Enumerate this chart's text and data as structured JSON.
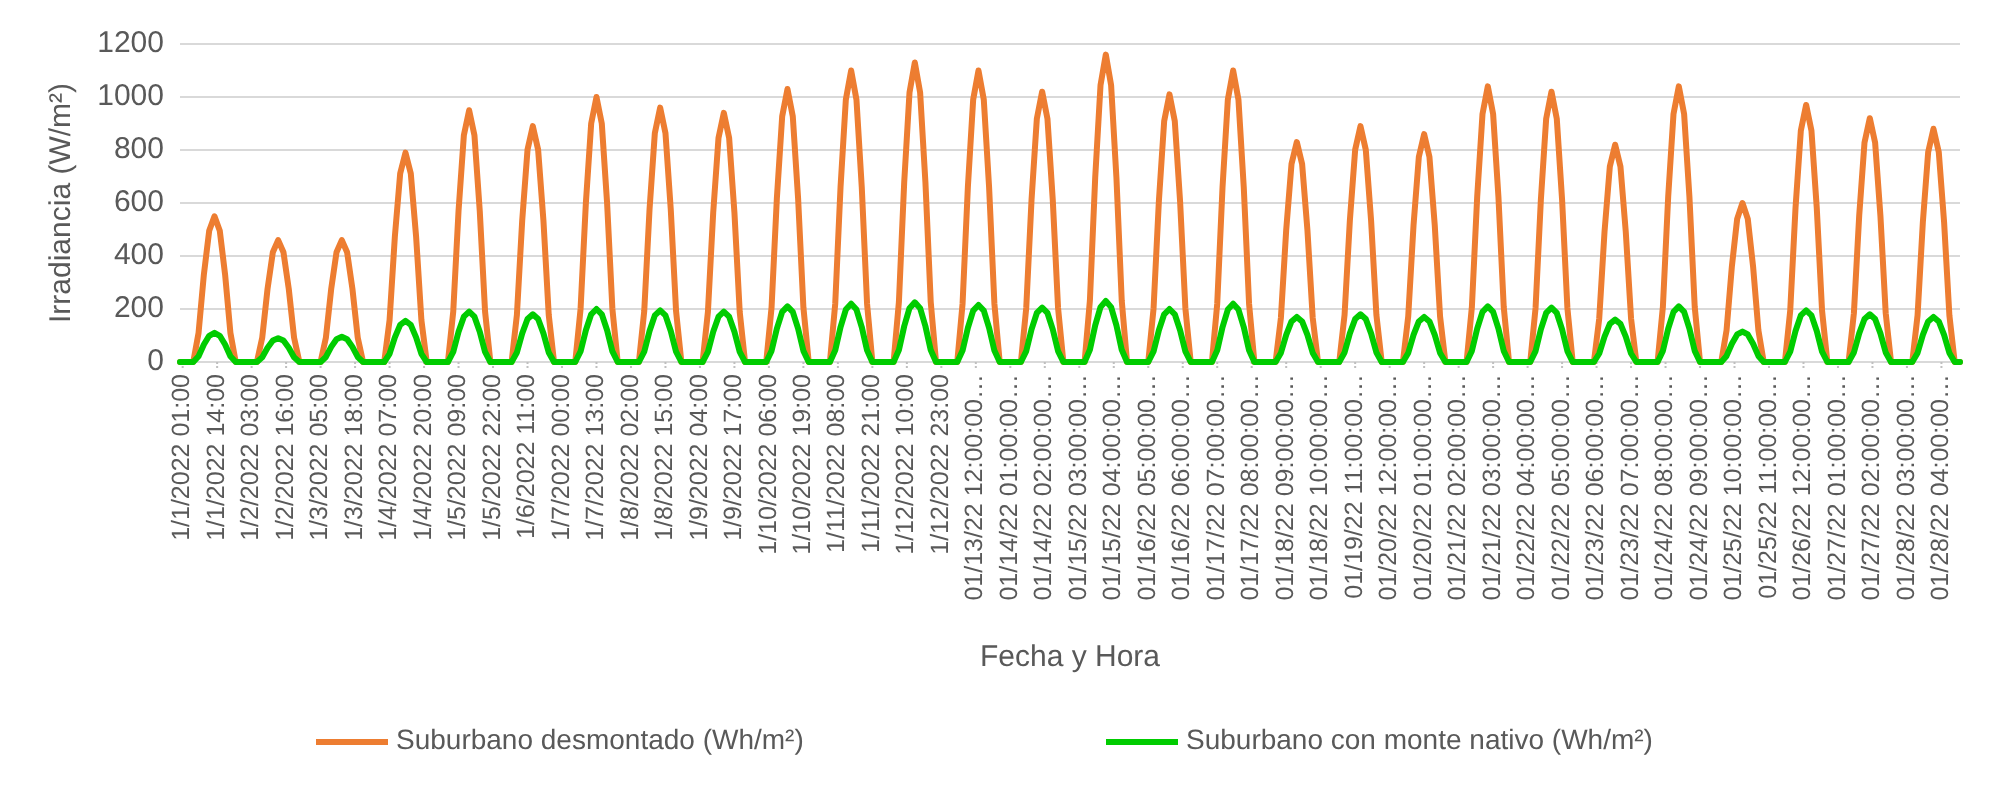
{
  "chart_data": {
    "type": "line",
    "xlabel": "Fecha y Hora",
    "ylabel": "Irradiancia (W/m²)",
    "x": [
      "2022-01-01T00:00",
      "2022-01-01T05:00",
      "2022-01-01T07:00",
      "2022-01-01T09:00",
      "2022-01-01T11:00",
      "2022-01-01T13:00",
      "2022-01-01T15:00",
      "2022-01-01T17:00",
      "2022-01-01T19:00",
      "2022-01-01T21:00",
      "2022-01-02T05:00",
      "2022-01-02T07:00",
      "2022-01-02T09:00",
      "2022-01-02T11:00",
      "2022-01-02T13:00",
      "2022-01-02T15:00",
      "2022-01-02T17:00",
      "2022-01-02T19:00",
      "2022-01-02T21:00",
      "2022-01-03T05:00",
      "2022-01-03T07:00",
      "2022-01-03T09:00",
      "2022-01-03T11:00",
      "2022-01-03T13:00",
      "2022-01-03T15:00",
      "2022-01-03T17:00",
      "2022-01-03T19:00",
      "2022-01-03T21:00",
      "2022-01-04T05:00",
      "2022-01-04T07:00",
      "2022-01-04T09:00",
      "2022-01-04T11:00",
      "2022-01-04T13:00",
      "2022-01-04T15:00",
      "2022-01-04T17:00",
      "2022-01-04T19:00",
      "2022-01-04T21:00",
      "2022-01-05T05:00",
      "2022-01-05T07:00",
      "2022-01-05T09:00",
      "2022-01-05T11:00",
      "2022-01-05T13:00",
      "2022-01-05T15:00",
      "2022-01-05T17:00",
      "2022-01-05T19:00",
      "2022-01-05T21:00",
      "2022-01-06T05:00",
      "2022-01-06T07:00",
      "2022-01-06T09:00",
      "2022-01-06T11:00",
      "2022-01-06T13:00",
      "2022-01-06T15:00",
      "2022-01-06T17:00",
      "2022-01-06T19:00",
      "2022-01-06T21:00",
      "2022-01-07T05:00",
      "2022-01-07T07:00",
      "2022-01-07T09:00",
      "2022-01-07T11:00",
      "2022-01-07T13:00",
      "2022-01-07T15:00",
      "2022-01-07T17:00",
      "2022-01-07T19:00",
      "2022-01-07T21:00",
      "2022-01-08T05:00",
      "2022-01-08T07:00",
      "2022-01-08T09:00",
      "2022-01-08T11:00",
      "2022-01-08T13:00",
      "2022-01-08T15:00",
      "2022-01-08T17:00",
      "2022-01-08T19:00",
      "2022-01-08T21:00",
      "2022-01-09T05:00",
      "2022-01-09T07:00",
      "2022-01-09T09:00",
      "2022-01-09T11:00",
      "2022-01-09T13:00",
      "2022-01-09T15:00",
      "2022-01-09T17:00",
      "2022-01-09T19:00",
      "2022-01-09T21:00",
      "2022-01-10T05:00",
      "2022-01-10T07:00",
      "2022-01-10T09:00",
      "2022-01-10T11:00",
      "2022-01-10T13:00",
      "2022-01-10T15:00",
      "2022-01-10T17:00",
      "2022-01-10T19:00",
      "2022-01-10T21:00",
      "2022-01-11T05:00",
      "2022-01-11T07:00",
      "2022-01-11T09:00",
      "2022-01-11T11:00",
      "2022-01-11T13:00",
      "2022-01-11T15:00",
      "2022-01-11T17:00",
      "2022-01-11T19:00",
      "2022-01-11T21:00",
      "2022-01-12T05:00",
      "2022-01-12T07:00",
      "2022-01-12T09:00",
      "2022-01-12T11:00",
      "2022-01-12T13:00",
      "2022-01-12T15:00",
      "2022-01-12T17:00",
      "2022-01-12T19:00",
      "2022-01-12T21:00",
      "2022-01-13T05:00",
      "2022-01-13T07:00",
      "2022-01-13T09:00",
      "2022-01-13T11:00",
      "2022-01-13T13:00",
      "2022-01-13T15:00",
      "2022-01-13T17:00",
      "2022-01-13T19:00",
      "2022-01-13T21:00",
      "2022-01-14T05:00",
      "2022-01-14T07:00",
      "2022-01-14T09:00",
      "2022-01-14T11:00",
      "2022-01-14T13:00",
      "2022-01-14T15:00",
      "2022-01-14T17:00",
      "2022-01-14T19:00",
      "2022-01-14T21:00",
      "2022-01-15T05:00",
      "2022-01-15T07:00",
      "2022-01-15T09:00",
      "2022-01-15T11:00",
      "2022-01-15T13:00",
      "2022-01-15T15:00",
      "2022-01-15T17:00",
      "2022-01-15T19:00",
      "2022-01-15T21:00",
      "2022-01-16T05:00",
      "2022-01-16T07:00",
      "2022-01-16T09:00",
      "2022-01-16T11:00",
      "2022-01-16T13:00",
      "2022-01-16T15:00",
      "2022-01-16T17:00",
      "2022-01-16T19:00",
      "2022-01-16T21:00",
      "2022-01-17T05:00",
      "2022-01-17T07:00",
      "2022-01-17T09:00",
      "2022-01-17T11:00",
      "2022-01-17T13:00",
      "2022-01-17T15:00",
      "2022-01-17T17:00",
      "2022-01-17T19:00",
      "2022-01-17T21:00",
      "2022-01-18T05:00",
      "2022-01-18T07:00",
      "2022-01-18T09:00",
      "2022-01-18T11:00",
      "2022-01-18T13:00",
      "2022-01-18T15:00",
      "2022-01-18T17:00",
      "2022-01-18T19:00",
      "2022-01-18T21:00",
      "2022-01-19T05:00",
      "2022-01-19T07:00",
      "2022-01-19T09:00",
      "2022-01-19T11:00",
      "2022-01-19T13:00",
      "2022-01-19T15:00",
      "2022-01-19T17:00",
      "2022-01-19T19:00",
      "2022-01-19T21:00",
      "2022-01-20T05:00",
      "2022-01-20T07:00",
      "2022-01-20T09:00",
      "2022-01-20T11:00",
      "2022-01-20T13:00",
      "2022-01-20T15:00",
      "2022-01-20T17:00",
      "2022-01-20T19:00",
      "2022-01-20T21:00",
      "2022-01-21T05:00",
      "2022-01-21T07:00",
      "2022-01-21T09:00",
      "2022-01-21T11:00",
      "2022-01-21T13:00",
      "2022-01-21T15:00",
      "2022-01-21T17:00",
      "2022-01-21T19:00",
      "2022-01-21T21:00",
      "2022-01-22T05:00",
      "2022-01-22T07:00",
      "2022-01-22T09:00",
      "2022-01-22T11:00",
      "2022-01-22T13:00",
      "2022-01-22T15:00",
      "2022-01-22T17:00",
      "2022-01-22T19:00",
      "2022-01-22T21:00",
      "2022-01-23T05:00",
      "2022-01-23T07:00",
      "2022-01-23T09:00",
      "2022-01-23T11:00",
      "2022-01-23T13:00",
      "2022-01-23T15:00",
      "2022-01-23T17:00",
      "2022-01-23T19:00",
      "2022-01-23T21:00",
      "2022-01-24T05:00",
      "2022-01-24T07:00",
      "2022-01-24T09:00",
      "2022-01-24T11:00",
      "2022-01-24T13:00",
      "2022-01-24T15:00",
      "2022-01-24T17:00",
      "2022-01-24T19:00",
      "2022-01-24T21:00",
      "2022-01-25T05:00",
      "2022-01-25T07:00",
      "2022-01-25T09:00",
      "2022-01-25T11:00",
      "2022-01-25T13:00",
      "2022-01-25T15:00",
      "2022-01-25T17:00",
      "2022-01-25T19:00",
      "2022-01-25T21:00",
      "2022-01-26T05:00",
      "2022-01-26T07:00",
      "2022-01-26T09:00",
      "2022-01-26T11:00",
      "2022-01-26T13:00",
      "2022-01-26T15:00",
      "2022-01-26T17:00",
      "2022-01-26T19:00",
      "2022-01-26T21:00",
      "2022-01-27T05:00",
      "2022-01-27T07:00",
      "2022-01-27T09:00",
      "2022-01-27T11:00",
      "2022-01-27T13:00",
      "2022-01-27T15:00",
      "2022-01-27T17:00",
      "2022-01-27T19:00",
      "2022-01-27T21:00",
      "2022-01-28T05:00",
      "2022-01-28T07:00",
      "2022-01-28T09:00",
      "2022-01-28T11:00",
      "2022-01-28T13:00",
      "2022-01-28T15:00",
      "2022-01-28T17:00",
      "2022-01-28T19:00",
      "2022-01-28T21:00",
      "2022-01-28T23:00"
    ],
    "series": [
      {
        "name": "Suburbano desmontado (Wh/m²)",
        "color": "#ed7d31",
        "values": [
          0,
          0,
          110,
          330,
          495,
          550,
          495,
          330,
          110,
          0,
          0,
          92,
          276,
          414,
          460,
          414,
          276,
          92,
          0,
          0,
          92,
          276,
          414,
          460,
          414,
          276,
          92,
          0,
          0,
          158,
          474,
          711,
          790,
          711,
          474,
          158,
          0,
          0,
          190,
          570,
          855,
          950,
          855,
          570,
          190,
          0,
          0,
          178,
          534,
          801,
          890,
          801,
          534,
          178,
          0,
          0,
          200,
          600,
          900,
          1000,
          900,
          600,
          200,
          0,
          0,
          192,
          576,
          864,
          960,
          864,
          576,
          192,
          0,
          0,
          188,
          564,
          846,
          940,
          846,
          564,
          188,
          0,
          0,
          206,
          618,
          927,
          1030,
          927,
          618,
          206,
          0,
          0,
          220,
          660,
          990,
          1100,
          990,
          660,
          220,
          0,
          0,
          226,
          678,
          1017,
          1130,
          1017,
          678,
          226,
          0,
          0,
          220,
          660,
          990,
          1100,
          990,
          660,
          220,
          0,
          0,
          204,
          612,
          918,
          1020,
          918,
          612,
          204,
          0,
          0,
          232,
          696,
          1044,
          1160,
          1044,
          696,
          232,
          0,
          0,
          202,
          606,
          909,
          1010,
          909,
          606,
          202,
          0,
          0,
          220,
          660,
          990,
          1100,
          990,
          660,
          220,
          0,
          0,
          166,
          498,
          747,
          830,
          747,
          498,
          166,
          0,
          0,
          178,
          534,
          801,
          890,
          801,
          534,
          178,
          0,
          0,
          172,
          516,
          774,
          860,
          774,
          516,
          172,
          0,
          0,
          208,
          624,
          936,
          1040,
          936,
          624,
          208,
          0,
          0,
          204,
          612,
          918,
          1020,
          918,
          612,
          204,
          0,
          0,
          164,
          492,
          738,
          820,
          738,
          492,
          164,
          0,
          0,
          208,
          624,
          936,
          1040,
          936,
          624,
          208,
          0,
          0,
          120,
          360,
          540,
          600,
          540,
          360,
          120,
          0,
          0,
          194,
          582,
          873,
          970,
          873,
          582,
          194,
          0,
          0,
          184,
          552,
          828,
          920,
          828,
          552,
          184,
          0,
          0,
          176,
          528,
          792,
          880,
          792,
          528,
          176,
          0,
          0
        ]
      },
      {
        "name": "Suburbano con monte nativo (Wh/m²)",
        "color": "#00cc00",
        "values": [
          0,
          0,
          22,
          66,
          99,
          110,
          99,
          66,
          22,
          0,
          0,
          18,
          54,
          81,
          90,
          81,
          54,
          18,
          0,
          0,
          19,
          57,
          86,
          95,
          86,
          57,
          19,
          0,
          0,
          31,
          93,
          140,
          155,
          140,
          93,
          31,
          0,
          0,
          38,
          114,
          171,
          190,
          171,
          114,
          38,
          0,
          0,
          36,
          108,
          162,
          180,
          162,
          108,
          36,
          0,
          0,
          40,
          120,
          180,
          200,
          180,
          120,
          40,
          0,
          0,
          39,
          117,
          176,
          195,
          176,
          117,
          39,
          0,
          0,
          38,
          114,
          171,
          190,
          171,
          114,
          38,
          0,
          0,
          42,
          126,
          189,
          210,
          189,
          126,
          42,
          0,
          0,
          44,
          132,
          198,
          220,
          198,
          132,
          44,
          0,
          0,
          45,
          135,
          203,
          225,
          203,
          135,
          45,
          0,
          0,
          43,
          129,
          194,
          215,
          194,
          129,
          43,
          0,
          0,
          41,
          123,
          185,
          205,
          185,
          123,
          41,
          0,
          0,
          46,
          138,
          207,
          230,
          207,
          138,
          46,
          0,
          0,
          40,
          120,
          180,
          200,
          180,
          120,
          40,
          0,
          0,
          44,
          132,
          198,
          220,
          198,
          132,
          44,
          0,
          0,
          34,
          102,
          153,
          170,
          153,
          102,
          34,
          0,
          0,
          36,
          108,
          162,
          180,
          162,
          108,
          36,
          0,
          0,
          34,
          102,
          153,
          170,
          153,
          102,
          34,
          0,
          0,
          42,
          126,
          189,
          210,
          189,
          126,
          42,
          0,
          0,
          41,
          123,
          185,
          205,
          185,
          123,
          41,
          0,
          0,
          32,
          96,
          144,
          160,
          144,
          96,
          32,
          0,
          0,
          42,
          126,
          189,
          210,
          189,
          126,
          42,
          0,
          0,
          23,
          69,
          104,
          115,
          104,
          69,
          23,
          0,
          0,
          39,
          117,
          176,
          195,
          176,
          117,
          39,
          0,
          0,
          36,
          108,
          162,
          180,
          162,
          108,
          36,
          0,
          0,
          34,
          102,
          153,
          170,
          153,
          102,
          34,
          0,
          0
        ]
      }
    ],
    "xlim": [
      "2022-01-01T00:00",
      "2022-01-28T23:00"
    ],
    "xticks": [
      {
        "value": "2022-01-01T01:00",
        "label": "1/1/2022 01:00"
      },
      {
        "value": "2022-01-01T14:00",
        "label": "1/1/2022 14:00"
      },
      {
        "value": "2022-01-02T03:00",
        "label": "1/2/2022 03:00"
      },
      {
        "value": "2022-01-02T16:00",
        "label": "1/2/2022 16:00"
      },
      {
        "value": "2022-01-03T05:00",
        "label": "1/3/2022 05:00"
      },
      {
        "value": "2022-01-03T18:00",
        "label": "1/3/2022 18:00"
      },
      {
        "value": "2022-01-04T07:00",
        "label": "1/4/2022 07:00"
      },
      {
        "value": "2022-01-04T20:00",
        "label": "1/4/2022 20:00"
      },
      {
        "value": "2022-01-05T09:00",
        "label": "1/5/2022 09:00"
      },
      {
        "value": "2022-01-05T22:00",
        "label": "1/5/2022 22:00"
      },
      {
        "value": "2022-01-06T11:00",
        "label": "1/6/2022 11:00"
      },
      {
        "value": "2022-01-07T00:00",
        "label": "1/7/2022 00:00"
      },
      {
        "value": "2022-01-07T13:00",
        "label": "1/7/2022 13:00"
      },
      {
        "value": "2022-01-08T02:00",
        "label": "1/8/2022 02:00"
      },
      {
        "value": "2022-01-08T15:00",
        "label": "1/8/2022 15:00"
      },
      {
        "value": "2022-01-09T04:00",
        "label": "1/9/2022 04:00"
      },
      {
        "value": "2022-01-09T17:00",
        "label": "1/9/2022 17:00"
      },
      {
        "value": "2022-01-10T06:00",
        "label": "1/10/2022 06:00"
      },
      {
        "value": "2022-01-10T19:00",
        "label": "1/10/2022 19:00"
      },
      {
        "value": "2022-01-11T08:00",
        "label": "1/11/2022 08:00"
      },
      {
        "value": "2022-01-11T21:00",
        "label": "1/11/2022 21:00"
      },
      {
        "value": "2022-01-12T10:00",
        "label": "1/12/2022 10:00"
      },
      {
        "value": "2022-01-12T23:00",
        "label": "1/12/2022 23:00"
      },
      {
        "value": "2022-01-13T12:00",
        "label": "01/13/22 12:00:00…"
      },
      {
        "value": "2022-01-14T01:00",
        "label": "01/14/22 01:00:00…"
      },
      {
        "value": "2022-01-14T14:00",
        "label": "01/14/22 02:00:00…"
      },
      {
        "value": "2022-01-15T03:00",
        "label": "01/15/22 03:00:00…"
      },
      {
        "value": "2022-01-15T16:00",
        "label": "01/15/22 04:00:00…"
      },
      {
        "value": "2022-01-16T05:00",
        "label": "01/16/22 05:00:00…"
      },
      {
        "value": "2022-01-16T18:00",
        "label": "01/16/22 06:00:00…"
      },
      {
        "value": "2022-01-17T07:00",
        "label": "01/17/22 07:00:00…"
      },
      {
        "value": "2022-01-17T20:00",
        "label": "01/17/22 08:00:00…"
      },
      {
        "value": "2022-01-18T09:00",
        "label": "01/18/22 09:00:00…"
      },
      {
        "value": "2022-01-18T22:00",
        "label": "01/18/22 10:00:00…"
      },
      {
        "value": "2022-01-19T11:00",
        "label": "01/19/22 11:00:00…"
      },
      {
        "value": "2022-01-20T00:00",
        "label": "01/20/22 12:00:00…"
      },
      {
        "value": "2022-01-20T13:00",
        "label": "01/20/22 01:00:00…"
      },
      {
        "value": "2022-01-21T02:00",
        "label": "01/21/22 02:00:00…"
      },
      {
        "value": "2022-01-21T15:00",
        "label": "01/21/22 03:00:00…"
      },
      {
        "value": "2022-01-22T04:00",
        "label": "01/22/22 04:00:00…"
      },
      {
        "value": "2022-01-22T17:00",
        "label": "01/22/22 05:00:00…"
      },
      {
        "value": "2022-01-23T06:00",
        "label": "01/23/22 06:00:00…"
      },
      {
        "value": "2022-01-23T19:00",
        "label": "01/23/22 07:00:00…"
      },
      {
        "value": "2022-01-24T08:00",
        "label": "01/24/22 08:00:00…"
      },
      {
        "value": "2022-01-24T21:00",
        "label": "01/24/22 09:00:00…"
      },
      {
        "value": "2022-01-25T10:00",
        "label": "01/25/22 10:00:00…"
      },
      {
        "value": "2022-01-25T23:00",
        "label": "01/25/22 11:00:00…"
      },
      {
        "value": "2022-01-26T12:00",
        "label": "01/26/22 12:00:00…"
      },
      {
        "value": "2022-01-27T01:00",
        "label": "01/27/22 01:00:00…"
      },
      {
        "value": "2022-01-27T14:00",
        "label": "01/27/22 02:00:00…"
      },
      {
        "value": "2022-01-28T03:00",
        "label": "01/28/22 03:00:00…"
      },
      {
        "value": "2022-01-28T16:00",
        "label": "01/28/22 04:00:00…"
      }
    ],
    "ylim": [
      0,
      1200
    ],
    "yticks": [
      0,
      200,
      400,
      600,
      800,
      1000,
      1200
    ],
    "grid": "y",
    "legend": "bottom",
    "marker": "none",
    "line_style": "solid"
  }
}
